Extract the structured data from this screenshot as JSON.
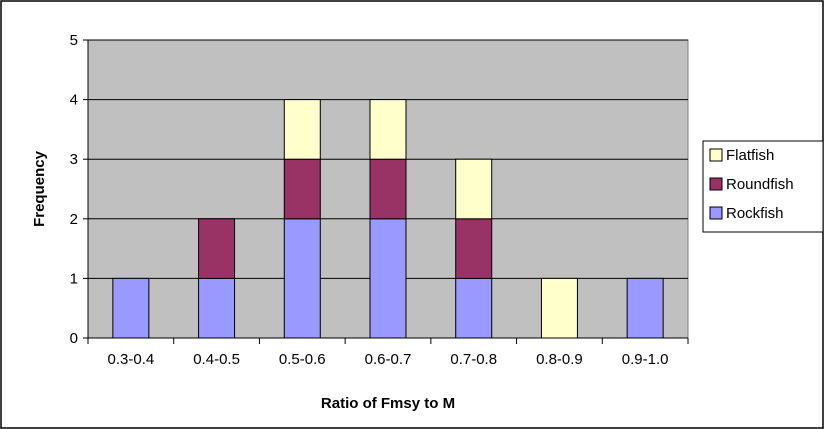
{
  "chart_data": {
    "type": "bar",
    "stacked": true,
    "title": "",
    "xlabel": "Ratio of Fmsy to M",
    "ylabel": "Frequency",
    "ylim": [
      0,
      5
    ],
    "yticks": [
      "0",
      "1",
      "2",
      "3",
      "4",
      "5"
    ],
    "categories": [
      "0.3-0.4",
      "0.4-0.5",
      "0.5-0.6",
      "0.6-0.7",
      "0.7-0.8",
      "0.8-0.9",
      "0.9-1.0"
    ],
    "series": [
      {
        "name": "Rockfish",
        "values": [
          1,
          1,
          2,
          2,
          1,
          0,
          1
        ],
        "color": "#9999FF"
      },
      {
        "name": "Roundfish",
        "values": [
          0,
          1,
          1,
          1,
          1,
          0,
          0
        ],
        "color": "#993366"
      },
      {
        "name": "Flatfish",
        "values": [
          0,
          0,
          1,
          1,
          1,
          1,
          0
        ],
        "color": "#FFFFCC"
      }
    ],
    "legend_order": [
      "Flatfish",
      "Roundfish",
      "Rockfish"
    ],
    "legend_position": "right",
    "plot_background": "#C0C0C0",
    "grid": true
  }
}
